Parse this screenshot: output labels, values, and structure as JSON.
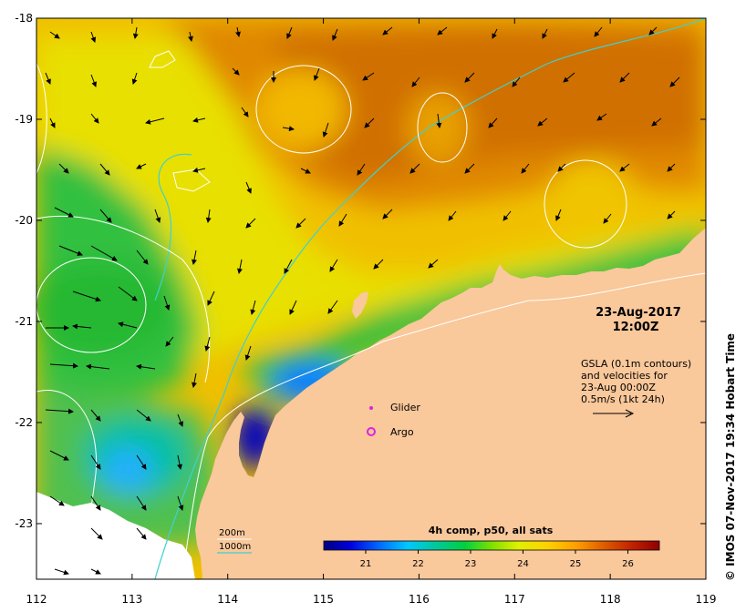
{
  "map": {
    "lon_ticks": [
      112,
      113,
      114,
      115,
      116,
      117,
      118,
      119
    ],
    "lat_ticks": [
      -18,
      -19,
      -20,
      -21,
      -22,
      -23
    ],
    "lon_range": [
      112,
      119
    ],
    "lat_range": [
      -23.55,
      -18
    ],
    "land_color": "#f9c89b"
  },
  "timestamp": {
    "date": "23-Aug-2017",
    "time": "12:00Z"
  },
  "gsla_note": {
    "line1": "GSLA (0.1m contours)",
    "line2": "and velocities for",
    "line3": "23-Aug 00:00Z",
    "line4": "0.5m/s (1kt 24h)"
  },
  "markers": {
    "glider_label": "Glider",
    "argo_label": "Argo",
    "marker_color": "#e020e0"
  },
  "isobaths": {
    "label_200": "200m",
    "label_1000": "1000m",
    "color_1000": "#40d0d0"
  },
  "colorbar": {
    "title": "4h comp, p50, all sats",
    "ticks": [
      "21",
      "22",
      "23",
      "24",
      "25",
      "26"
    ],
    "range": [
      20.2,
      26.6
    ],
    "stops": [
      "#00007f",
      "#0000e0",
      "#0070ff",
      "#00c8ff",
      "#00c8a0",
      "#00d040",
      "#7de000",
      "#e0f000",
      "#ffd000",
      "#ffa000",
      "#e06000",
      "#c02000",
      "#900000"
    ]
  },
  "credit": "© IMOS 07-Nov-2017 19:34 Hobart Time"
}
